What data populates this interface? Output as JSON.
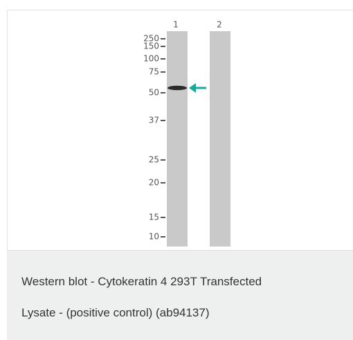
{
  "figure": {
    "lanes": [
      "1",
      "2"
    ],
    "markers": [
      "250",
      "150",
      "100",
      "75",
      "50",
      "37",
      "25",
      "20",
      "15",
      "10"
    ]
  },
  "caption": {
    "lines": [
      "Western blot - Cytokeratin 4 293T Transfected",
      "Lysate - (positive control) (ab94137)"
    ]
  }
}
